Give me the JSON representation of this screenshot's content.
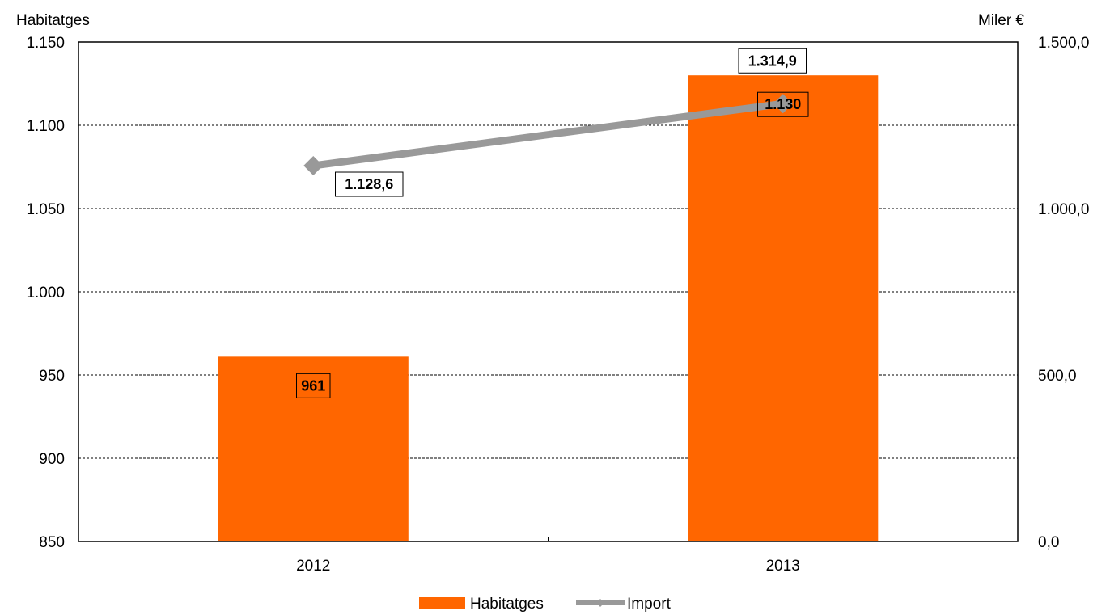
{
  "chart_data": {
    "type": "bar",
    "categories": [
      "2012",
      "2013"
    ],
    "y_left": {
      "title": "Habitatges",
      "min": 850,
      "max": 1150,
      "ticks": [
        850,
        900,
        950,
        1000,
        1050,
        1100,
        1150
      ],
      "tick_labels": [
        "850",
        "900",
        "950",
        "1.000",
        "1.050",
        "1.100",
        "1.150"
      ]
    },
    "y_right": {
      "title": "Miler €",
      "min": 0,
      "max": 1500,
      "ticks": [
        0,
        500,
        1000,
        1500
      ],
      "tick_labels": [
        "0,0",
        "500,0",
        "1.000,0",
        "1.500,0"
      ]
    },
    "series": [
      {
        "name": "Habitatges",
        "type": "bar",
        "axis": "left",
        "values": [
          961,
          1130
        ],
        "labels": [
          "961",
          "1.130"
        ],
        "color": "#FF6600"
      },
      {
        "name": "Import",
        "type": "line",
        "axis": "right",
        "values": [
          1128.6,
          1314.9
        ],
        "labels": [
          "1.128,6",
          "1.314,9"
        ],
        "color": "#999999"
      }
    ],
    "grid": true,
    "legend_position": "bottom"
  }
}
